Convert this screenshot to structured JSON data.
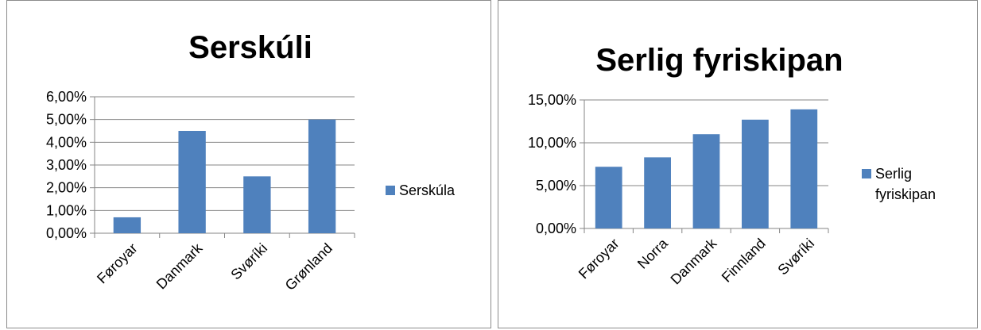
{
  "chart_data": [
    {
      "type": "bar",
      "title": "Serskúli",
      "categories": [
        "Føroyar",
        "Danmark",
        "Svøríki",
        "Grønland"
      ],
      "series": [
        {
          "name": "Serskúla",
          "values": [
            0.7,
            4.5,
            2.5,
            5.0
          ],
          "color": "#4f81bd"
        }
      ],
      "ylim": [
        0,
        6
      ],
      "yticks": [
        0,
        1,
        2,
        3,
        4,
        5,
        6
      ],
      "ytick_labels": [
        "0,00%",
        "1,00%",
        "2,00%",
        "3,00%",
        "4,00%",
        "5,00%",
        "6,00%"
      ],
      "grid": true,
      "legend": "right"
    },
    {
      "type": "bar",
      "title": "Serlig fyriskipan",
      "categories": [
        "Føroyar",
        "Norra",
        "Danmark",
        "Finnland",
        "Svøríki"
      ],
      "series": [
        {
          "name": "Serlig fyriskipan",
          "values": [
            7.2,
            8.3,
            11.0,
            12.7,
            13.9
          ],
          "color": "#4f81bd"
        }
      ],
      "ylim": [
        0,
        15
      ],
      "yticks": [
        0,
        5,
        10,
        15
      ],
      "ytick_labels": [
        "0,00%",
        "5,00%",
        "10,00%",
        "15,00%"
      ],
      "grid": true,
      "legend": "right"
    }
  ]
}
